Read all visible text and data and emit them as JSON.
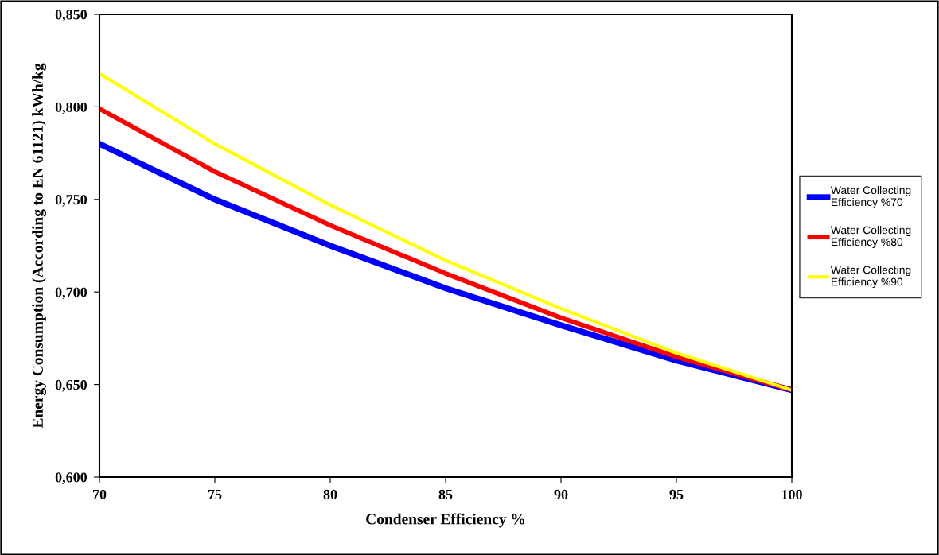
{
  "chart_data": {
    "type": "line",
    "xlabel": "Condenser Efficiency %",
    "ylabel": "Energy Consumption (According to EN 61121) kWh/kg",
    "x": [
      70,
      75,
      80,
      85,
      90,
      95,
      100
    ],
    "series": [
      {
        "name": "Water Collecting Efficiency %70",
        "color": "#0000ff",
        "values": [
          0.78,
          0.75,
          0.725,
          0.702,
          0.682,
          0.663,
          0.647
        ]
      },
      {
        "name": "Water Collecting Efficiency %80",
        "color": "#ff0000",
        "values": [
          0.799,
          0.765,
          0.736,
          0.71,
          0.686,
          0.665,
          0.647
        ]
      },
      {
        "name": "Water Collecting Efficiency %90",
        "color": "#ffff00",
        "values": [
          0.818,
          0.78,
          0.747,
          0.717,
          0.691,
          0.667,
          0.647
        ]
      }
    ],
    "xlim": [
      70,
      100
    ],
    "xticks": [
      70,
      75,
      80,
      85,
      90,
      95,
      100
    ],
    "ylim": [
      0.6,
      0.85
    ],
    "yticks": [
      {
        "value": 0.6,
        "label": "0,600"
      },
      {
        "value": 0.65,
        "label": "0,650"
      },
      {
        "value": 0.7,
        "label": "0,700"
      },
      {
        "value": 0.75,
        "label": "0,750"
      },
      {
        "value": 0.8,
        "label": "0,800"
      },
      {
        "value": 0.85,
        "label": "0,850"
      }
    ],
    "grid": false,
    "legend": "right",
    "marker": "none",
    "line_style": "solid"
  }
}
